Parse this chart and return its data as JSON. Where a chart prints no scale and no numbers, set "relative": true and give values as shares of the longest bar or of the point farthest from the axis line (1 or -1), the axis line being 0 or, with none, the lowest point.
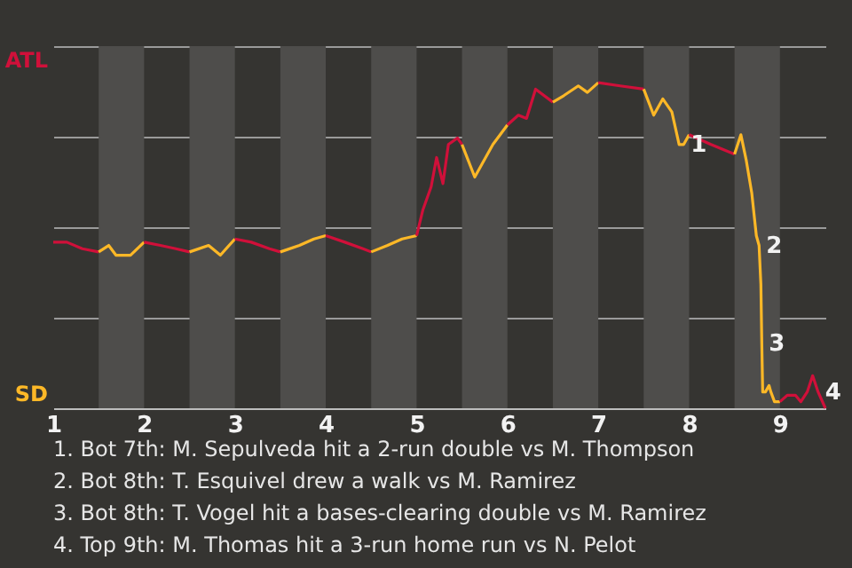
{
  "chart_data": {
    "type": "line",
    "relative": true,
    "xlim": [
      1,
      9.5
    ],
    "xticks": [
      1,
      2,
      3,
      4,
      5,
      6,
      7,
      8,
      9
    ],
    "grid": "y",
    "series": [
      {
        "color": "#d0103a",
        "x": [
          1,
          1.15,
          1.32,
          1.5
        ],
        "values": [
          0.51,
          0.51,
          0.49,
          0.48
        ]
      },
      {
        "color": "#fdb827",
        "x": [
          1.5,
          1.61,
          1.69,
          1.85,
          2
        ],
        "values": [
          0.48,
          0.5,
          0.47,
          0.47,
          0.51
        ]
      },
      {
        "color": "#d0103a",
        "x": [
          2,
          2.18,
          2.35,
          2.5
        ],
        "values": [
          0.51,
          0.5,
          0.49,
          0.48
        ]
      },
      {
        "color": "#fdb827",
        "x": [
          2.5,
          2.71,
          2.84,
          3
        ],
        "values": [
          0.48,
          0.5,
          0.47,
          0.52
        ]
      },
      {
        "color": "#d0103a",
        "x": [
          3,
          3.18,
          3.38,
          3.5
        ],
        "values": [
          0.52,
          0.51,
          0.49,
          0.48
        ]
      },
      {
        "color": "#fdb827",
        "x": [
          3.5,
          3.71,
          3.87,
          4
        ],
        "values": [
          0.48,
          0.5,
          0.52,
          0.53
        ]
      },
      {
        "color": "#d0103a",
        "x": [
          4,
          4.21,
          4.41,
          4.5
        ],
        "values": [
          0.53,
          0.51,
          0.49,
          0.48
        ]
      },
      {
        "color": "#fdb827",
        "x": [
          4.5,
          4.68,
          4.84,
          5
        ],
        "values": [
          0.48,
          0.5,
          0.52,
          0.53
        ]
      },
      {
        "color": "#d0103a",
        "x": [
          5,
          5.07,
          5.16,
          5.22,
          5.29,
          5.35,
          5.45,
          5.5
        ],
        "values": [
          0.53,
          0.61,
          0.68,
          0.77,
          0.69,
          0.81,
          0.83,
          0.81
        ]
      },
      {
        "color": "#fdb827",
        "x": [
          5.5,
          5.64,
          5.7,
          5.84,
          6
        ],
        "values": [
          0.81,
          0.71,
          0.74,
          0.81,
          0.87
        ]
      },
      {
        "color": "#d0103a",
        "x": [
          6,
          6.12,
          6.21,
          6.31,
          6.5
        ],
        "values": [
          0.87,
          0.9,
          0.89,
          0.98,
          0.94
        ]
      },
      {
        "color": "#fdb827",
        "x": [
          6.5,
          6.62,
          6.78,
          6.88,
          7
        ],
        "values": [
          0.94,
          0.96,
          0.99,
          0.97,
          1
        ]
      },
      {
        "color": "#d0103a",
        "x": [
          7,
          7.24,
          7.5
        ],
        "values": [
          1,
          0.99,
          0.98
        ]
      },
      {
        "color": "#fdb827",
        "x": [
          7.5,
          7.61,
          7.71,
          7.81,
          7.89,
          7.94,
          8
        ],
        "values": [
          0.98,
          0.9,
          0.95,
          0.91,
          0.81,
          0.81,
          0.84
        ]
      },
      {
        "color": "#d0103a",
        "x": [
          8,
          8.24,
          8.5
        ],
        "values": [
          0.84,
          0.81,
          0.78
        ]
      },
      {
        "color": "#fdb827",
        "x": [
          8.5,
          8.57,
          8.63,
          8.69,
          8.74,
          8.77,
          8.79,
          8.8,
          8.81,
          8.84,
          8.88,
          8.9,
          8.94,
          9
        ],
        "values": [
          0.78,
          0.84,
          0.76,
          0.66,
          0.53,
          0.5,
          0.38,
          0.2,
          0.05,
          0.05,
          0.07,
          0.05,
          0.02,
          0.02
        ]
      },
      {
        "color": "#d0103a",
        "x": [
          9,
          9.08,
          9.17,
          9.23,
          9.3,
          9.36,
          9.42,
          9.5
        ],
        "values": [
          0.02,
          0.04,
          0.04,
          0.02,
          0.05,
          0.1,
          0.05,
          0
        ]
      }
    ],
    "bands": [
      {
        "axis": "x",
        "from": 1.5,
        "to": 2,
        "color": "#4e4d4b"
      },
      {
        "axis": "x",
        "from": 2.5,
        "to": 3,
        "color": "#4e4d4b"
      },
      {
        "axis": "x",
        "from": 3.5,
        "to": 4,
        "color": "#4e4d4b"
      },
      {
        "axis": "x",
        "from": 4.5,
        "to": 5,
        "color": "#4e4d4b"
      },
      {
        "axis": "x",
        "from": 5.5,
        "to": 6,
        "color": "#4e4d4b"
      },
      {
        "axis": "x",
        "from": 6.5,
        "to": 7,
        "color": "#4e4d4b"
      },
      {
        "axis": "x",
        "from": 7.5,
        "to": 8,
        "color": "#4e4d4b"
      },
      {
        "axis": "x",
        "from": 8.5,
        "to": 9,
        "color": "#4e4d4b"
      }
    ],
    "annotations": [
      "ATL",
      "SD",
      {
        "text": "1",
        "x": 7.94,
        "y": 0.81
      },
      {
        "text": "2",
        "x": 8.77,
        "y": 0.5
      },
      {
        "text": "3",
        "x": 8.8,
        "y": 0.2
      },
      {
        "text": "4",
        "x": 9.42,
        "y": 0.05
      },
      "1. Bot 7th: M. Sepulveda hit a 2-run double vs M. Thompson",
      "2. Bot 8th: T. Esquivel drew a walk vs M. Ramirez",
      "3. Bot 8th: T. Vogel hit a bases-clearing double vs M. Ramirez",
      "4. Top 9th: M. Thomas hit a 3-run home run vs N. Pelot"
    ]
  }
}
